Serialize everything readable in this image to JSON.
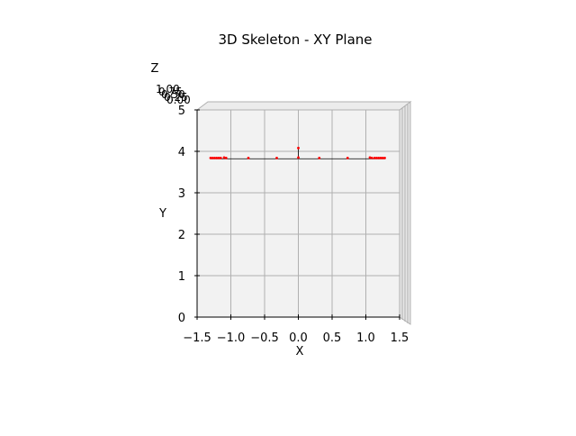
{
  "chart_data": {
    "type": "scatter",
    "projection": "3d",
    "title": "3D Skeleton - XY Plane",
    "xlabel": "X",
    "ylabel": "Y",
    "zlabel": "Z",
    "xlim": [
      -1.5,
      1.5
    ],
    "ylim": [
      0,
      5
    ],
    "xticks": [
      "−1.5",
      "−1.0",
      "−0.5",
      "0.0",
      "0.5",
      "1.0",
      "1.5"
    ],
    "yticks": [
      "0",
      "1",
      "2",
      "3",
      "4",
      "5"
    ],
    "grid": true,
    "points": [
      {
        "x": -1.3,
        "y": 3.84
      },
      {
        "x": -1.27,
        "y": 3.84
      },
      {
        "x": -1.24,
        "y": 3.84
      },
      {
        "x": -1.21,
        "y": 3.84
      },
      {
        "x": -1.18,
        "y": 3.84
      },
      {
        "x": -1.15,
        "y": 3.84
      },
      {
        "x": -1.1,
        "y": 3.85
      },
      {
        "x": -1.07,
        "y": 3.84
      },
      {
        "x": -0.74,
        "y": 3.84
      },
      {
        "x": -0.32,
        "y": 3.84
      },
      {
        "x": 0.0,
        "y": 4.08
      },
      {
        "x": 0.0,
        "y": 3.85
      },
      {
        "x": 0.31,
        "y": 3.84
      },
      {
        "x": 0.73,
        "y": 3.84
      },
      {
        "x": 1.06,
        "y": 3.85
      },
      {
        "x": 1.09,
        "y": 3.84
      },
      {
        "x": 1.13,
        "y": 3.84
      },
      {
        "x": 1.16,
        "y": 3.84
      },
      {
        "x": 1.19,
        "y": 3.84
      },
      {
        "x": 1.22,
        "y": 3.84
      },
      {
        "x": 1.25,
        "y": 3.84
      },
      {
        "x": 1.28,
        "y": 3.84
      }
    ],
    "bones": [
      {
        "x": [
          -1.3,
          1.28
        ],
        "y": [
          3.82,
          3.82
        ]
      },
      {
        "x": [
          0.0,
          0.0
        ],
        "y": [
          3.82,
          4.08
        ]
      }
    ],
    "point_color": "#ff0000",
    "bone_color": "#000000"
  }
}
